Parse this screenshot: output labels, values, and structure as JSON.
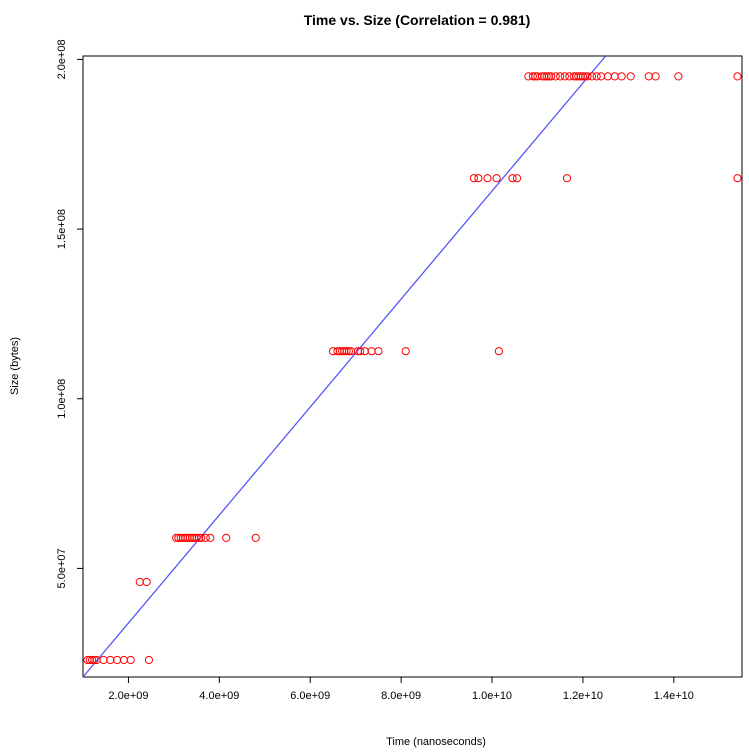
{
  "chart_data": {
    "type": "scatter",
    "title": "Time vs. Size (Correlation = 0.981)",
    "xlabel": "Time (nanoseconds)",
    "ylabel": "Size (bytes)",
    "xlim": [
      1000000000,
      15500000000
    ],
    "ylim": [
      18000000,
      201000000
    ],
    "x_ticks": [
      {
        "value": 2000000000,
        "label": "2.0e+09"
      },
      {
        "value": 4000000000,
        "label": "4.0e+09"
      },
      {
        "value": 6000000000,
        "label": "6.0e+09"
      },
      {
        "value": 8000000000,
        "label": "8.0e+09"
      },
      {
        "value": 10000000000,
        "label": "1.0e+10"
      },
      {
        "value": 12000000000,
        "label": "1.2e+10"
      },
      {
        "value": 14000000000,
        "label": "1.4e+10"
      }
    ],
    "y_ticks": [
      {
        "value": 50000000,
        "label": "5.0e+07"
      },
      {
        "value": 100000000,
        "label": "1.0e+08"
      },
      {
        "value": 150000000,
        "label": "1.5e+08"
      },
      {
        "value": 200000000,
        "label": "2.0e+08"
      }
    ],
    "grid": false,
    "point_color": "#ff0000",
    "line_color": "#5555ff",
    "fit_line": {
      "x": [
        1000000000,
        12500000000
      ],
      "y": [
        18000000,
        201000000
      ]
    },
    "series": [
      {
        "marker": "open-circle",
        "points": [
          [
            1100000000,
            23000000
          ],
          [
            1150000000,
            23000000
          ],
          [
            1200000000,
            23000000
          ],
          [
            1250000000,
            23000000
          ],
          [
            1300000000,
            23000000
          ],
          [
            1450000000,
            23000000
          ],
          [
            1600000000,
            23000000
          ],
          [
            1750000000,
            23000000
          ],
          [
            1900000000,
            23000000
          ],
          [
            2050000000,
            23000000
          ],
          [
            2450000000,
            23000000
          ],
          [
            2250000000,
            46000000
          ],
          [
            2400000000,
            46000000
          ],
          [
            3050000000,
            59000000
          ],
          [
            3100000000,
            59000000
          ],
          [
            3150000000,
            59000000
          ],
          [
            3200000000,
            59000000
          ],
          [
            3250000000,
            59000000
          ],
          [
            3300000000,
            59000000
          ],
          [
            3350000000,
            59000000
          ],
          [
            3400000000,
            59000000
          ],
          [
            3450000000,
            59000000
          ],
          [
            3500000000,
            59000000
          ],
          [
            3550000000,
            59000000
          ],
          [
            3600000000,
            59000000
          ],
          [
            3700000000,
            59000000
          ],
          [
            3800000000,
            59000000
          ],
          [
            4150000000,
            59000000
          ],
          [
            4800000000,
            59000000
          ],
          [
            6500000000,
            114000000
          ],
          [
            6600000000,
            114000000
          ],
          [
            6650000000,
            114000000
          ],
          [
            6700000000,
            114000000
          ],
          [
            6750000000,
            114000000
          ],
          [
            6800000000,
            114000000
          ],
          [
            6850000000,
            114000000
          ],
          [
            6900000000,
            114000000
          ],
          [
            7050000000,
            114000000
          ],
          [
            7100000000,
            114000000
          ],
          [
            7200000000,
            114000000
          ],
          [
            7350000000,
            114000000
          ],
          [
            7500000000,
            114000000
          ],
          [
            8100000000,
            114000000
          ],
          [
            10150000000,
            114000000
          ],
          [
            9600000000,
            165000000
          ],
          [
            9700000000,
            165000000
          ],
          [
            9900000000,
            165000000
          ],
          [
            10100000000,
            165000000
          ],
          [
            10450000000,
            165000000
          ],
          [
            10550000000,
            165000000
          ],
          [
            11650000000,
            165000000
          ],
          [
            15400000000,
            165000000
          ],
          [
            10800000000,
            195000000
          ],
          [
            10900000000,
            195000000
          ],
          [
            10950000000,
            195000000
          ],
          [
            11000000000,
            195000000
          ],
          [
            11100000000,
            195000000
          ],
          [
            11150000000,
            195000000
          ],
          [
            11200000000,
            195000000
          ],
          [
            11250000000,
            195000000
          ],
          [
            11300000000,
            195000000
          ],
          [
            11400000000,
            195000000
          ],
          [
            11500000000,
            195000000
          ],
          [
            11600000000,
            195000000
          ],
          [
            11700000000,
            195000000
          ],
          [
            11800000000,
            195000000
          ],
          [
            11850000000,
            195000000
          ],
          [
            11900000000,
            195000000
          ],
          [
            11950000000,
            195000000
          ],
          [
            12000000000,
            195000000
          ],
          [
            12050000000,
            195000000
          ],
          [
            12100000000,
            195000000
          ],
          [
            12200000000,
            195000000
          ],
          [
            12300000000,
            195000000
          ],
          [
            12400000000,
            195000000
          ],
          [
            12550000000,
            195000000
          ],
          [
            12700000000,
            195000000
          ],
          [
            12850000000,
            195000000
          ],
          [
            13050000000,
            195000000
          ],
          [
            13450000000,
            195000000
          ],
          [
            13600000000,
            195000000
          ],
          [
            14100000000,
            195000000
          ],
          [
            15400000000,
            195000000
          ]
        ]
      }
    ]
  }
}
